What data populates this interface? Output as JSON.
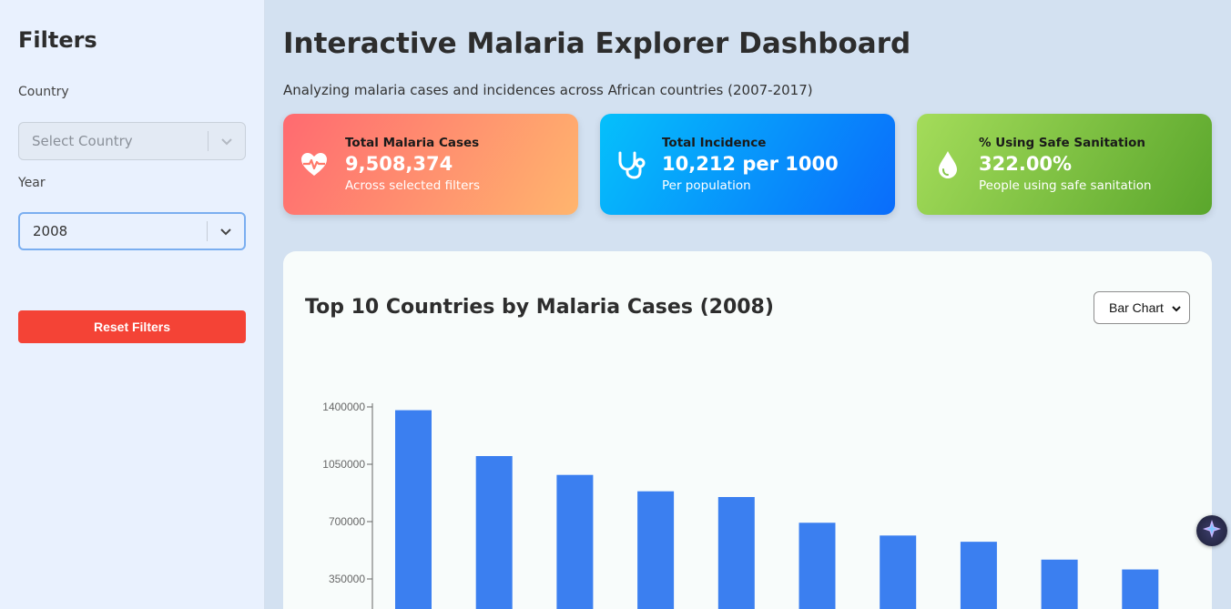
{
  "sidebar": {
    "title": "Filters",
    "country_label": "Country",
    "country_placeholder": "Select Country",
    "year_label": "Year",
    "year_value": "2008",
    "reset_label": "Reset Filters"
  },
  "header": {
    "title": "Interactive Malaria Explorer Dashboard",
    "subtitle": "Analyzing malaria cases and incidences across African countries (2007-2017)"
  },
  "cards": [
    {
      "title": "Total Malaria Cases",
      "value": "9,508,374",
      "desc": "Across selected filters",
      "icon": "heart-pulse-icon"
    },
    {
      "title": "Total Incidence",
      "value": "10,212 per 1000",
      "desc": "Per population",
      "icon": "stethoscope-icon"
    },
    {
      "title": "% Using Safe Sanitation",
      "value": "322.00%",
      "desc": "People using safe sanitation",
      "icon": "water-drop-icon"
    }
  ],
  "chart_panel": {
    "title": "Top 10 Countries by Malaria Cases (2008)",
    "chart_type_selected": "Bar Chart"
  },
  "colors": {
    "bar": "#3b7ff0",
    "reset_button": "#f44336"
  },
  "chart_data": {
    "type": "bar",
    "title": "Top 10 Countries by Malaria Cases (2008)",
    "categories": [
      "",
      "",
      "",
      "",
      "",
      "",
      "",
      "",
      "",
      ""
    ],
    "values": [
      1380000,
      1100000,
      985000,
      885000,
      850000,
      693000,
      615000,
      577000,
      468000,
      408000
    ],
    "yticks": [
      350000,
      700000,
      1050000,
      1400000
    ],
    "ylim": [
      0,
      1400000
    ],
    "grid": false
  }
}
